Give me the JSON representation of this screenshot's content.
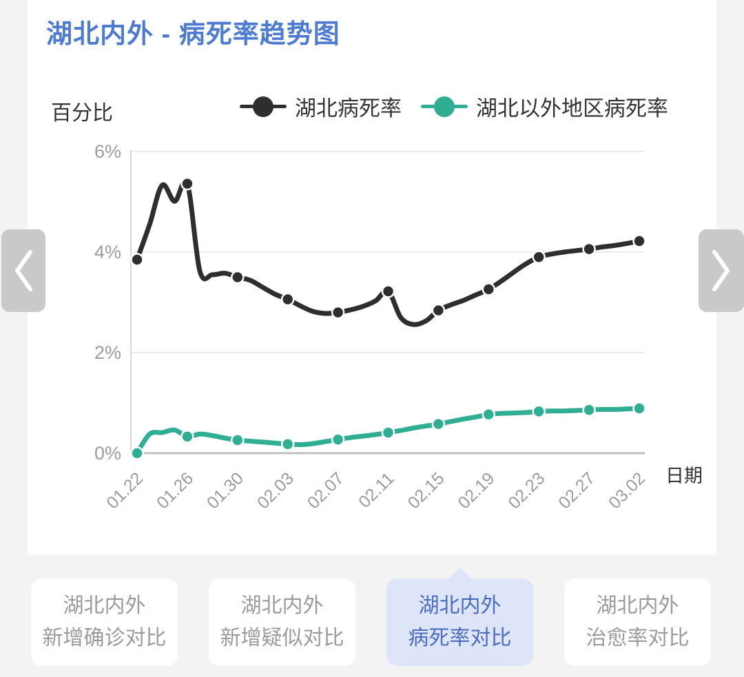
{
  "header": {
    "title": "湖北内外 - 病死率趋势图"
  },
  "colors": {
    "title": "#4c7bd1",
    "hubei_line": "#2e2e2e",
    "outside_line": "#2fae93",
    "active_tab_bg": "#dee5f9",
    "active_tab_text": "#4a6dbd",
    "tab_text": "#9b9b9b",
    "axis_label": "#9b9b9b",
    "nav_button_bg": "#c9c9c9"
  },
  "chart_data": {
    "type": "line",
    "title": "湖北内外 - 病死率趋势图",
    "ylabel": "百分比",
    "xlabel": "日期",
    "ylim": [
      0,
      6
    ],
    "y_tick_labels": [
      "0%",
      "2%",
      "4%",
      "6%"
    ],
    "x_tick_labels": [
      "01.22",
      "01.26",
      "01.30",
      "02.03",
      "02.07",
      "02.11",
      "02.15",
      "02.19",
      "02.23",
      "02.27",
      "03.02"
    ],
    "points_per_tick_interval": 4,
    "marker_every": 4,
    "grid": true,
    "legend_position": "top",
    "series": [
      {
        "name": "湖北病死率",
        "color": "#2e2e2e",
        "values": [
          3.85,
          4.55,
          5.33,
          5.01,
          5.36,
          3.62,
          3.55,
          3.58,
          3.5,
          3.44,
          3.3,
          3.16,
          3.06,
          2.93,
          2.82,
          2.78,
          2.8,
          2.85,
          2.92,
          3.03,
          3.22,
          2.7,
          2.56,
          2.63,
          2.84,
          2.95,
          3.04,
          3.15,
          3.26,
          3.42,
          3.6,
          3.77,
          3.9,
          3.96,
          4.0,
          4.03,
          4.06,
          4.1,
          4.13,
          4.17,
          4.22
        ],
        "values_at_ticks": [
          3.85,
          5.36,
          3.5,
          3.06,
          2.8,
          3.22,
          2.84,
          3.26,
          3.9,
          4.06,
          4.22
        ]
      },
      {
        "name": "湖北以外地区病死率",
        "color": "#2fae93",
        "values": [
          0.0,
          0.38,
          0.41,
          0.46,
          0.33,
          0.38,
          0.35,
          0.3,
          0.26,
          0.24,
          0.22,
          0.2,
          0.18,
          0.17,
          0.19,
          0.23,
          0.27,
          0.31,
          0.34,
          0.37,
          0.41,
          0.45,
          0.5,
          0.54,
          0.58,
          0.63,
          0.68,
          0.72,
          0.77,
          0.79,
          0.8,
          0.81,
          0.83,
          0.84,
          0.84,
          0.85,
          0.86,
          0.87,
          0.87,
          0.88,
          0.89
        ],
        "values_at_ticks": [
          0.0,
          0.33,
          0.26,
          0.18,
          0.27,
          0.41,
          0.58,
          0.77,
          0.83,
          0.86,
          0.89
        ]
      }
    ]
  },
  "tabs": [
    {
      "label_line1": "湖北内外",
      "label_line2": "新增确诊对比",
      "active": false
    },
    {
      "label_line1": "湖北内外",
      "label_line2": "新增疑似对比",
      "active": false
    },
    {
      "label_line1": "湖北内外",
      "label_line2": "病死率对比",
      "active": true
    },
    {
      "label_line1": "湖北内外",
      "label_line2": "治愈率对比",
      "active": false
    }
  ]
}
